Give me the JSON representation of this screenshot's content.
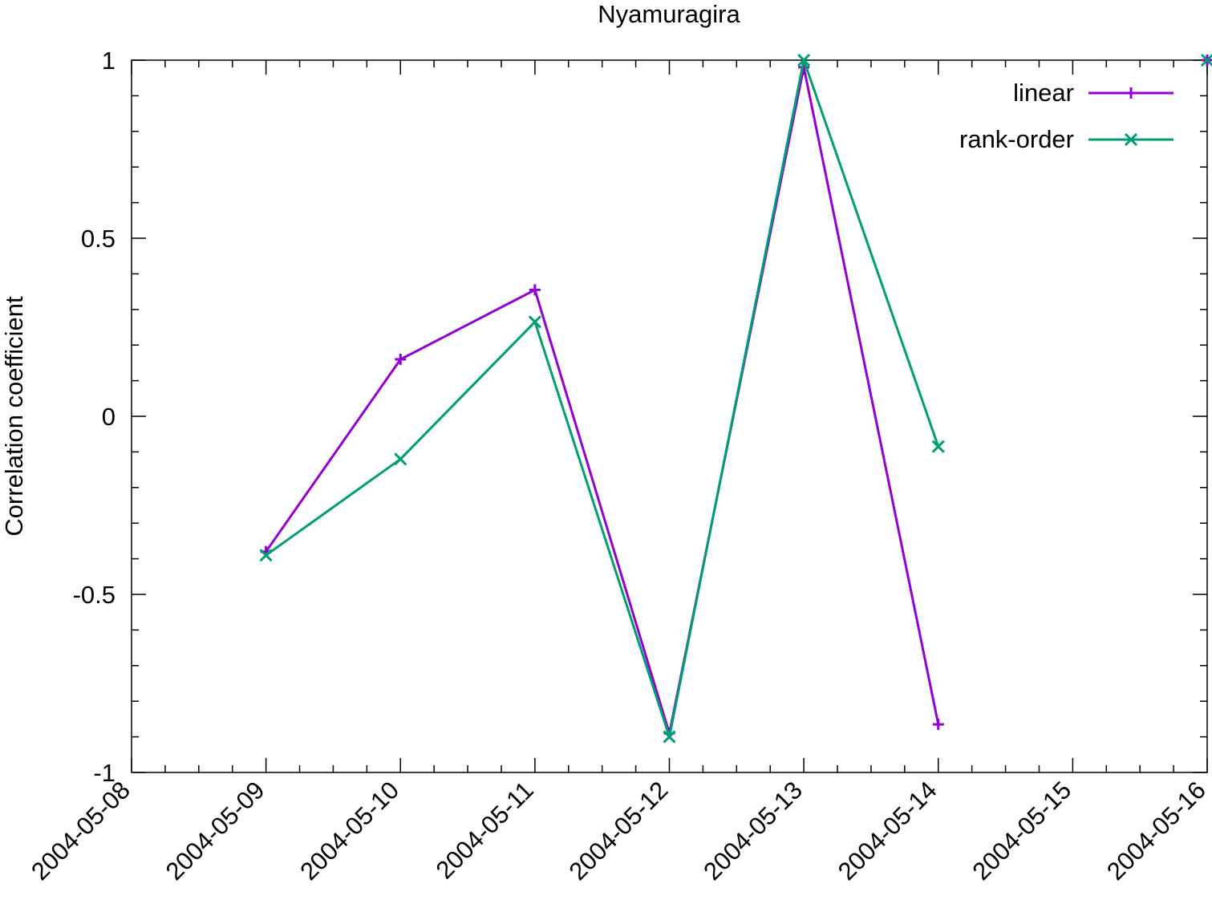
{
  "chart_data": {
    "type": "line",
    "title": "Nyamuragira",
    "xlabel": "",
    "ylabel": "Correlation coefficient",
    "x_ticks": [
      "2004-05-08",
      "2004-05-09",
      "2004-05-10",
      "2004-05-11",
      "2004-05-12",
      "2004-05-13",
      "2004-05-14",
      "2004-05-15",
      "2004-05-16"
    ],
    "y_ticks": [
      "-1",
      "-0.5",
      "0",
      "0.5",
      "1"
    ],
    "xlim": [
      "2004-05-08",
      "2004-05-16"
    ],
    "ylim": [
      -1,
      1
    ],
    "grid": false,
    "legend_position": "top-right",
    "series": [
      {
        "name": "linear",
        "color": "#9400d3",
        "marker": "plus",
        "points": [
          {
            "x": "2004-05-09",
            "y": -0.38
          },
          {
            "x": "2004-05-10",
            "y": 0.16
          },
          {
            "x": "2004-05-11",
            "y": 0.355
          },
          {
            "x": "2004-05-12",
            "y": -0.89
          },
          {
            "x": "2004-05-13",
            "y": 0.98
          },
          {
            "x": "2004-05-14",
            "y": -0.865
          },
          {
            "x": "2004-05-16",
            "y": 1.0
          }
        ]
      },
      {
        "name": "rank-order",
        "color": "#009e73",
        "marker": "cross",
        "points": [
          {
            "x": "2004-05-09",
            "y": -0.39
          },
          {
            "x": "2004-05-10",
            "y": -0.12
          },
          {
            "x": "2004-05-11",
            "y": 0.265
          },
          {
            "x": "2004-05-12",
            "y": -0.9
          },
          {
            "x": "2004-05-13",
            "y": 1.0
          },
          {
            "x": "2004-05-14",
            "y": -0.085
          },
          {
            "x": "2004-05-16",
            "y": 1.0
          }
        ]
      }
    ]
  }
}
